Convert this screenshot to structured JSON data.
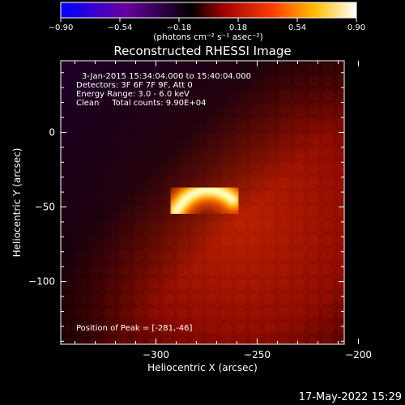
{
  "colorbar": {
    "ticks": [
      "−0.90",
      "−0.54",
      "−0.18",
      "0.18",
      "0.54",
      "0.90"
    ],
    "tick_values": [
      -0.9,
      -0.54,
      -0.18,
      0.18,
      0.54,
      0.9
    ],
    "range": [
      -0.9,
      0.9
    ],
    "colors": [
      "#0000ff",
      "#6a00a0",
      "#000000",
      "#d00000",
      "#ff8c00",
      "#ffff80",
      "#ffffff"
    ]
  },
  "chart_data": {
    "type": "heatmap",
    "title": "Reconstructed RHESSI Image",
    "units_label": "(photons cm⁻² s⁻¹ asec⁻²)",
    "xlabel": "Heliocentric X (arcsec)",
    "ylabel": "Heliocentric Y (arcsec)",
    "xlim": [
      -347,
      -207
    ],
    "ylim": [
      -142,
      48
    ],
    "x_ticks": [
      -300,
      -250,
      -200
    ],
    "x_tick_labels": [
      "−300",
      "−250",
      "−200"
    ],
    "y_ticks": [
      0,
      -50,
      -100
    ],
    "y_tick_labels": [
      "0",
      "−50",
      "−100"
    ],
    "source": {
      "shape": "arc",
      "x_range": [
        -290,
        -262
      ],
      "y_range": [
        -53,
        -36
      ],
      "peak": [
        -281,
        -46
      ]
    },
    "annotations": [
      "3-Jan-2015 15:34:04.000 to 15:40:04.000",
      "Detectors: 3F 6F 7F 9F, Att 0",
      "Energy Range: 3.0 - 6.0 keV",
      "Clean     Total counts: 9.90E+04"
    ],
    "peak_text": "Position of Peak = [-281,-46]"
  },
  "footer": {
    "date": "17-May-2022 15:29"
  }
}
